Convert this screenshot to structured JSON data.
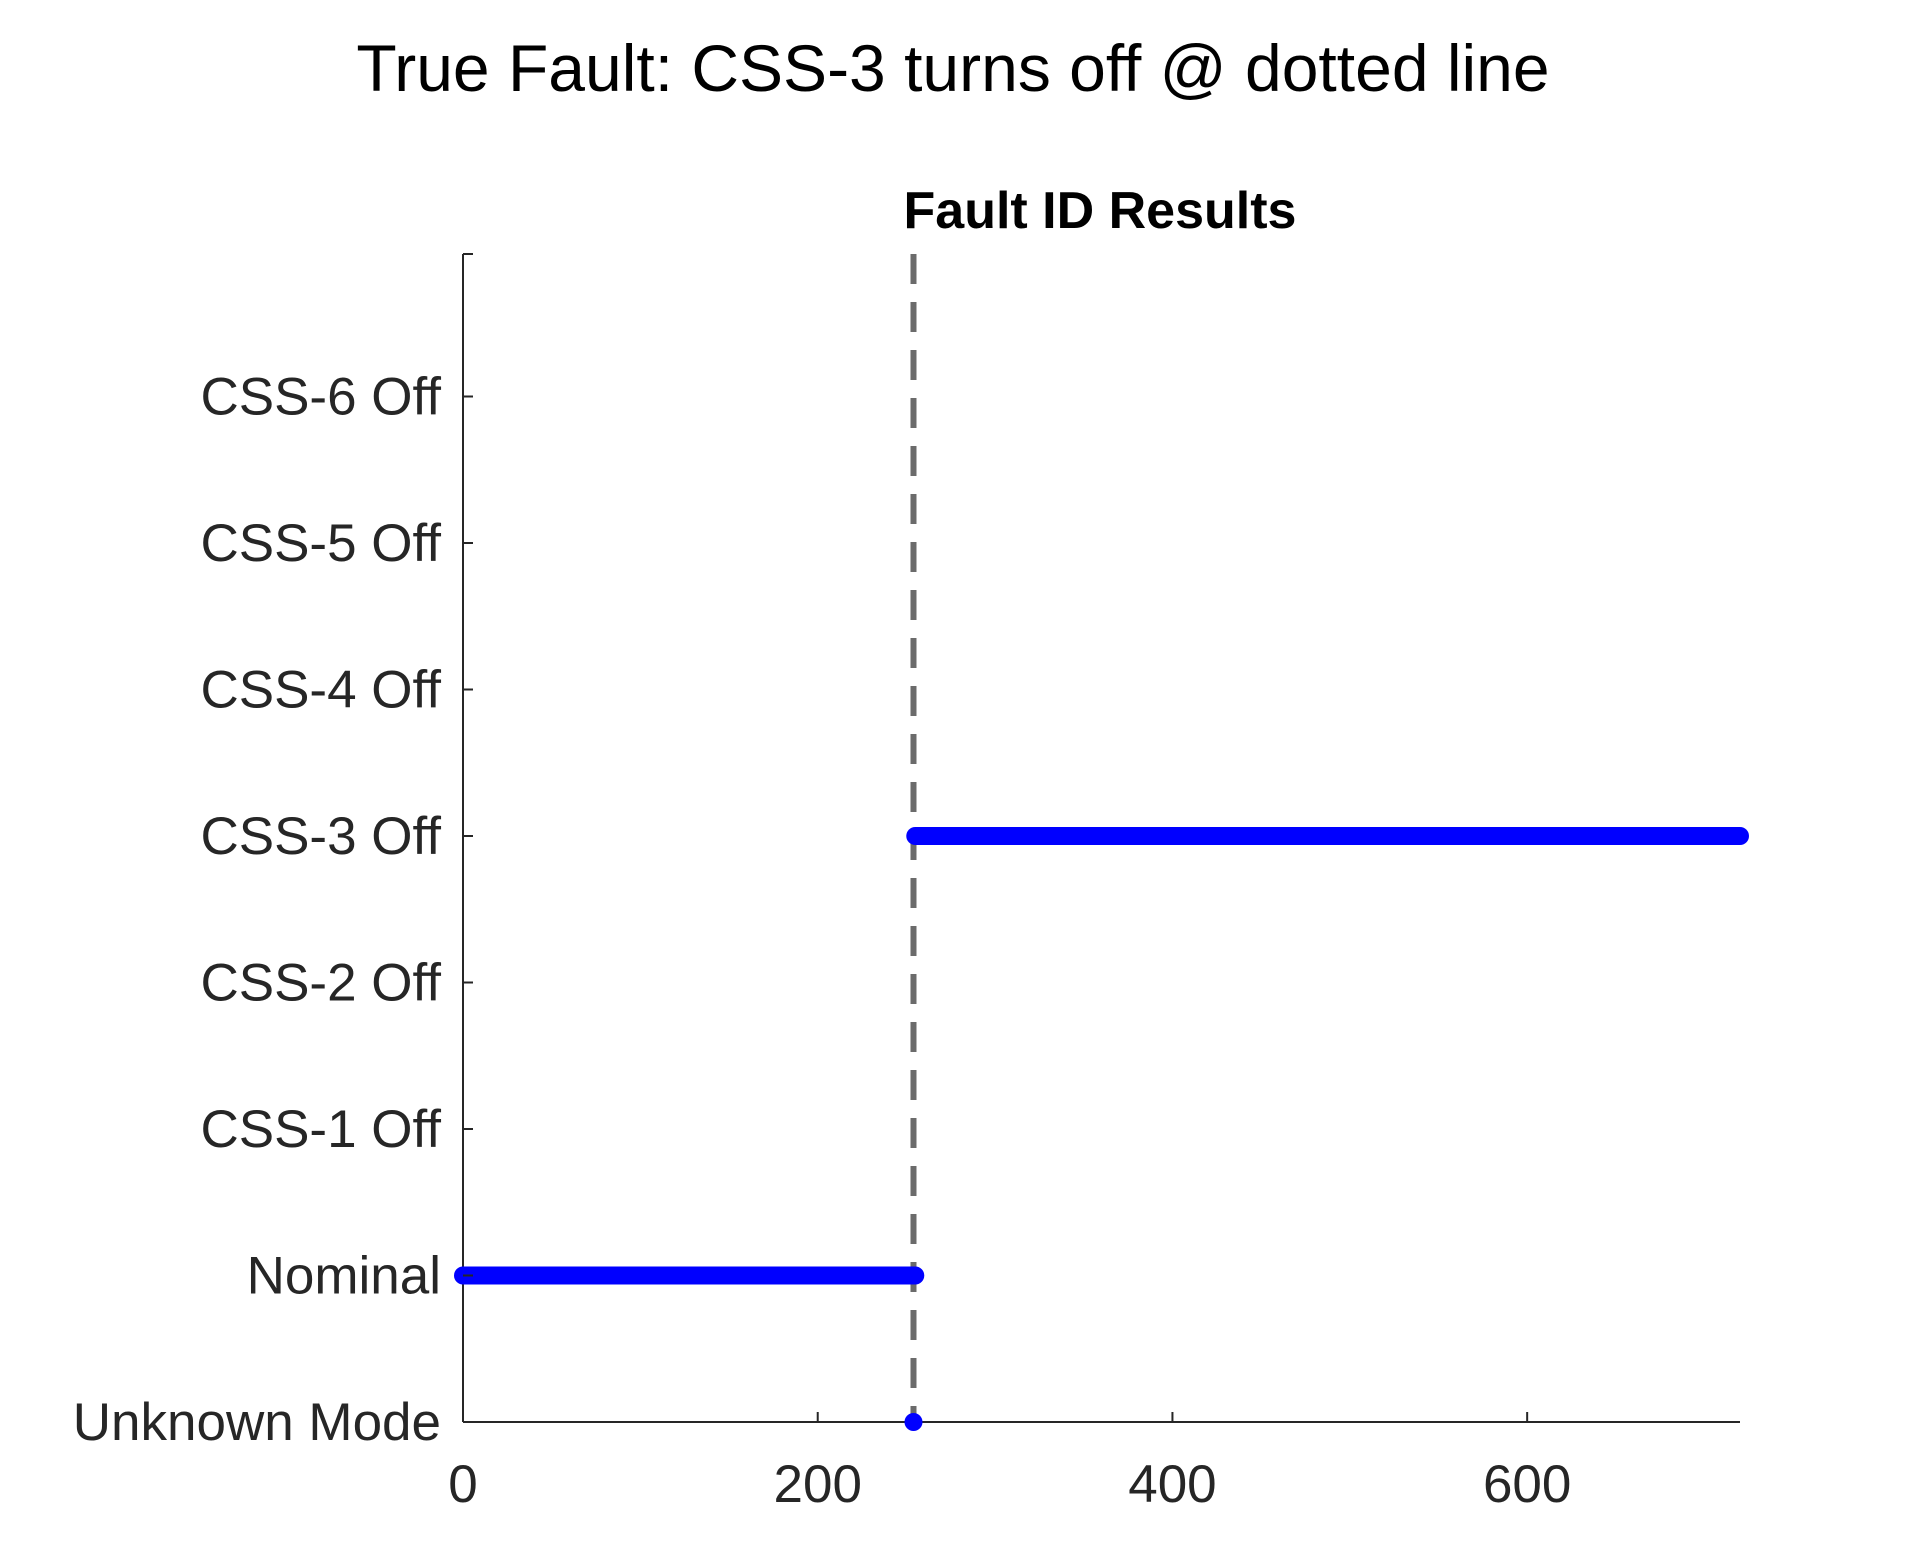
{
  "page": {
    "title": "True Fault: CSS-3 turns off @ dotted line"
  },
  "colors": {
    "series": "#0000ff",
    "axis": "#262626",
    "fault_line": "#6b6b6b"
  },
  "chart_data": {
    "type": "scatter",
    "title": "Fault ID Results",
    "xlabel": "",
    "ylabel": "",
    "xlim": [
      0,
      720
    ],
    "x_ticks": [
      0,
      200,
      400,
      600
    ],
    "categories": [
      "Unknown Mode",
      "Nominal",
      "CSS-1 Off",
      "CSS-2 Off",
      "CSS-3 Off",
      "CSS-4 Off",
      "CSS-5 Off",
      "CSS-6 Off"
    ],
    "grid": false,
    "fault_time": 254,
    "series": [
      {
        "segments": [
          {
            "mode": "Nominal",
            "x_start": 0,
            "x_end": 255
          },
          {
            "mode": "Unknown Mode",
            "x_start": 254,
            "x_end": 254
          },
          {
            "mode": "CSS-3 Off",
            "x_start": 255,
            "x_end": 720
          }
        ]
      }
    ]
  }
}
